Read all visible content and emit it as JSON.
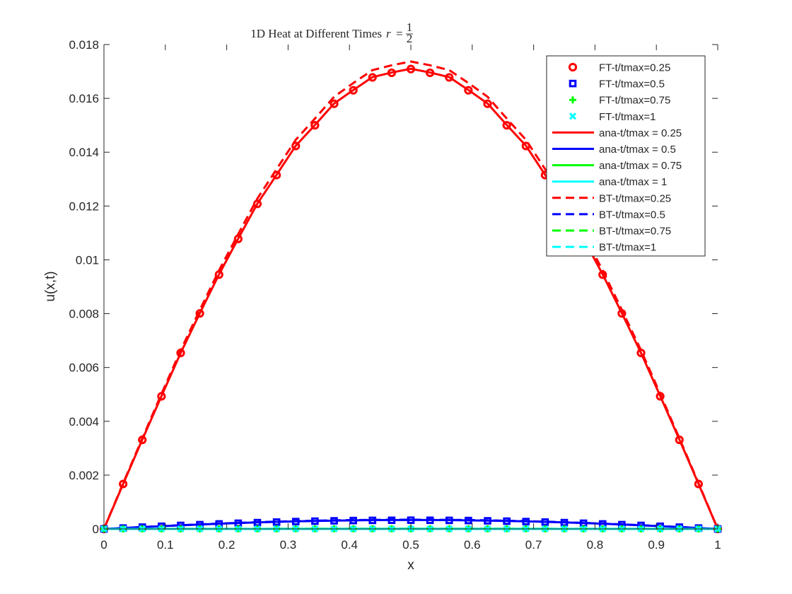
{
  "chart_data": {
    "type": "line",
    "title": "1D Heat at Different Times",
    "title_math": {
      "lhs": "r",
      "eq": "=",
      "num": "1",
      "den": "2"
    },
    "xlabel": "x",
    "ylabel": "u(x,t)",
    "xlim": [
      0,
      1
    ],
    "ylim": [
      0,
      0.018
    ],
    "xticks": [
      "0",
      "0.1",
      "0.2",
      "0.3",
      "0.4",
      "0.5",
      "0.6",
      "0.7",
      "0.8",
      "0.9",
      "1"
    ],
    "yticks": [
      "0",
      "0.002",
      "0.004",
      "0.006",
      "0.008",
      "0.01",
      "0.012",
      "0.014",
      "0.016",
      "0.018"
    ],
    "grid": false,
    "legend_position": "top-right",
    "x": [
      0,
      0.03125,
      0.0625,
      0.09375,
      0.125,
      0.15625,
      0.1875,
      0.21875,
      0.25,
      0.28125,
      0.3125,
      0.34375,
      0.375,
      0.40625,
      0.4375,
      0.46875,
      0.5,
      0.53125,
      0.5625,
      0.59375,
      0.625,
      0.65625,
      0.6875,
      0.71875,
      0.75,
      0.78125,
      0.8125,
      0.84375,
      0.875,
      0.90625,
      0.9375,
      0.96875,
      1
    ],
    "series": [
      {
        "name": "FT-t/tmax=0.25",
        "color": "#ff0000",
        "style": "marker",
        "marker": "circle",
        "values": [
          0,
          0.00167,
          0.00331,
          0.00493,
          0.00654,
          0.00801,
          0.00945,
          0.01078,
          0.01208,
          0.01315,
          0.01423,
          0.015,
          0.0158,
          0.0163,
          0.01678,
          0.01695,
          0.01709,
          0.01695,
          0.01678,
          0.0163,
          0.0158,
          0.015,
          0.01423,
          0.01315,
          0.01208,
          0.01078,
          0.00945,
          0.00801,
          0.00654,
          0.00493,
          0.00331,
          0.00167,
          0
        ]
      },
      {
        "name": "FT-t/tmax=0.5",
        "color": "#0000ff",
        "style": "marker",
        "marker": "square",
        "values": [
          0,
          3.4e-05,
          6.8e-05,
          0.0001,
          0.000131,
          0.00016,
          0.000187,
          0.000212,
          0.000235,
          0.000256,
          0.000274,
          0.000289,
          0.000302,
          0.000312,
          0.000318,
          0.000322,
          0.000324,
          0.000322,
          0.000318,
          0.000312,
          0.000302,
          0.000289,
          0.000274,
          0.000256,
          0.000235,
          0.000212,
          0.000187,
          0.00016,
          0.000131,
          0.0001,
          6.8e-05,
          3.4e-05,
          0
        ]
      },
      {
        "name": "FT-t/tmax=0.75",
        "color": "#00ff00",
        "style": "marker",
        "marker": "plus",
        "values": [
          0,
          6e-07,
          1.2e-06,
          1.8e-06,
          2.4e-06,
          3e-06,
          3.5e-06,
          3.9e-06,
          4.3e-06,
          4.7e-06,
          5e-06,
          5.3e-06,
          5.5e-06,
          5.7e-06,
          5.8e-06,
          5.9e-06,
          5.9e-06,
          5.9e-06,
          5.8e-06,
          5.7e-06,
          5.5e-06,
          5.3e-06,
          5e-06,
          4.7e-06,
          4.3e-06,
          3.9e-06,
          3.5e-06,
          3e-06,
          2.4e-06,
          1.8e-06,
          1.2e-06,
          6e-07,
          0
        ]
      },
      {
        "name": "FT-t/tmax=1",
        "color": "#00ffff",
        "style": "marker",
        "marker": "x",
        "values": [
          0,
          1e-08,
          2e-08,
          3e-08,
          4e-08,
          5e-08,
          6e-08,
          7e-08,
          8e-08,
          9e-08,
          9e-08,
          1e-07,
          1e-07,
          1e-07,
          1e-07,
          1e-07,
          1e-07,
          1e-07,
          1e-07,
          1e-07,
          1e-07,
          1e-07,
          9e-08,
          9e-08,
          8e-08,
          7e-08,
          6e-08,
          5e-08,
          4e-08,
          3e-08,
          2e-08,
          1e-08,
          0
        ]
      },
      {
        "name": "ana-t/tmax = 0.25",
        "color": "#ff0000",
        "style": "solid",
        "values": [
          0,
          0.00167,
          0.00332,
          0.00494,
          0.00654,
          0.00802,
          0.00946,
          0.01079,
          0.01209,
          0.01316,
          0.01424,
          0.01501,
          0.01581,
          0.01631,
          0.01679,
          0.01696,
          0.0171,
          0.01696,
          0.01679,
          0.01631,
          0.01581,
          0.01501,
          0.01424,
          0.01316,
          0.01209,
          0.01079,
          0.00946,
          0.00802,
          0.00654,
          0.00494,
          0.00332,
          0.00167,
          0
        ]
      },
      {
        "name": "ana-t/tmax = 0.5",
        "color": "#0000ff",
        "style": "solid",
        "values": [
          0,
          3.5e-05,
          7e-05,
          0.000103,
          0.000135,
          0.000165,
          0.000193,
          0.000219,
          0.000242,
          0.000263,
          0.000281,
          0.000297,
          0.00031,
          0.00032,
          0.000327,
          0.000331,
          0.000333,
          0.000331,
          0.000327,
          0.00032,
          0.00031,
          0.000297,
          0.000281,
          0.000263,
          0.000242,
          0.000219,
          0.000193,
          0.000165,
          0.000135,
          0.000103,
          7e-05,
          3.5e-05,
          0
        ]
      },
      {
        "name": "ana-t/tmax = 0.75",
        "color": "#00ff00",
        "style": "solid",
        "values": [
          0,
          6e-07,
          1.2e-06,
          1.8e-06,
          2.4e-06,
          3e-06,
          3.5e-06,
          4e-06,
          4.4e-06,
          4.8e-06,
          5.1e-06,
          5.4e-06,
          5.6e-06,
          5.8e-06,
          5.9e-06,
          6e-06,
          6e-06,
          6e-06,
          5.9e-06,
          5.8e-06,
          5.6e-06,
          5.4e-06,
          5.1e-06,
          4.8e-06,
          4.4e-06,
          4e-06,
          3.5e-06,
          3e-06,
          2.4e-06,
          1.8e-06,
          1.2e-06,
          6e-07,
          0
        ]
      },
      {
        "name": "ana-t/tmax = 1",
        "color": "#00ffff",
        "style": "solid",
        "values": [
          0,
          1e-08,
          2e-08,
          3e-08,
          4e-08,
          5e-08,
          6e-08,
          7e-08,
          8e-08,
          9e-08,
          9e-08,
          1e-07,
          1e-07,
          1e-07,
          1e-07,
          1e-07,
          1e-07,
          1e-07,
          1e-07,
          1e-07,
          1e-07,
          1e-07,
          9e-08,
          9e-08,
          8e-08,
          7e-08,
          6e-08,
          5e-08,
          4e-08,
          3e-08,
          2e-08,
          1e-08,
          0
        ]
      },
      {
        "name": "BT-t/tmax=0.25",
        "color": "#ff0000",
        "style": "dashed",
        "values": [
          0,
          0.0017,
          0.00337,
          0.00502,
          0.00664,
          0.00814,
          0.00961,
          0.01096,
          0.01228,
          0.01337,
          0.01446,
          0.01525,
          0.01606,
          0.01657,
          0.01705,
          0.01723,
          0.01737,
          0.01723,
          0.01705,
          0.01657,
          0.01606,
          0.01525,
          0.01446,
          0.01337,
          0.01228,
          0.01096,
          0.00961,
          0.00814,
          0.00664,
          0.00502,
          0.00337,
          0.0017,
          0
        ]
      },
      {
        "name": "BT-t/tmax=0.5",
        "color": "#0000ff",
        "style": "dashed",
        "values": [
          0,
          3.6e-05,
          7.2e-05,
          0.000106,
          0.000139,
          0.00017,
          0.000199,
          0.000226,
          0.00025,
          0.000272,
          0.000291,
          0.000307,
          0.00032,
          0.000331,
          0.000338,
          0.000342,
          0.000344,
          0.000342,
          0.000338,
          0.000331,
          0.00032,
          0.000307,
          0.000291,
          0.000272,
          0.00025,
          0.000226,
          0.000199,
          0.00017,
          0.000139,
          0.000106,
          7.2e-05,
          3.6e-05,
          0
        ]
      },
      {
        "name": "BT-t/tmax=0.75",
        "color": "#00ff00",
        "style": "dashed",
        "values": [
          0,
          7e-07,
          1.3e-06,
          1.9e-06,
          2.5e-06,
          3.1e-06,
          3.7e-06,
          4.2e-06,
          4.6e-06,
          5e-06,
          5.4e-06,
          5.7e-06,
          5.9e-06,
          6.1e-06,
          6.2e-06,
          6.3e-06,
          6.3e-06,
          6.3e-06,
          6.2e-06,
          6.1e-06,
          5.9e-06,
          5.7e-06,
          5.4e-06,
          5e-06,
          4.6e-06,
          4.2e-06,
          3.7e-06,
          3.1e-06,
          2.5e-06,
          1.9e-06,
          1.3e-06,
          7e-07,
          0
        ]
      },
      {
        "name": "BT-t/tmax=1",
        "color": "#00ffff",
        "style": "dashed",
        "values": [
          0,
          1e-08,
          2e-08,
          3e-08,
          4e-08,
          5e-08,
          6e-08,
          7e-08,
          8e-08,
          9e-08,
          9e-08,
          1e-07,
          1e-07,
          1e-07,
          1e-07,
          1e-07,
          1e-07,
          1e-07,
          1e-07,
          1e-07,
          1e-07,
          1e-07,
          9e-08,
          9e-08,
          8e-08,
          7e-08,
          6e-08,
          5e-08,
          4e-08,
          3e-08,
          2e-08,
          1e-08,
          0
        ]
      }
    ]
  }
}
